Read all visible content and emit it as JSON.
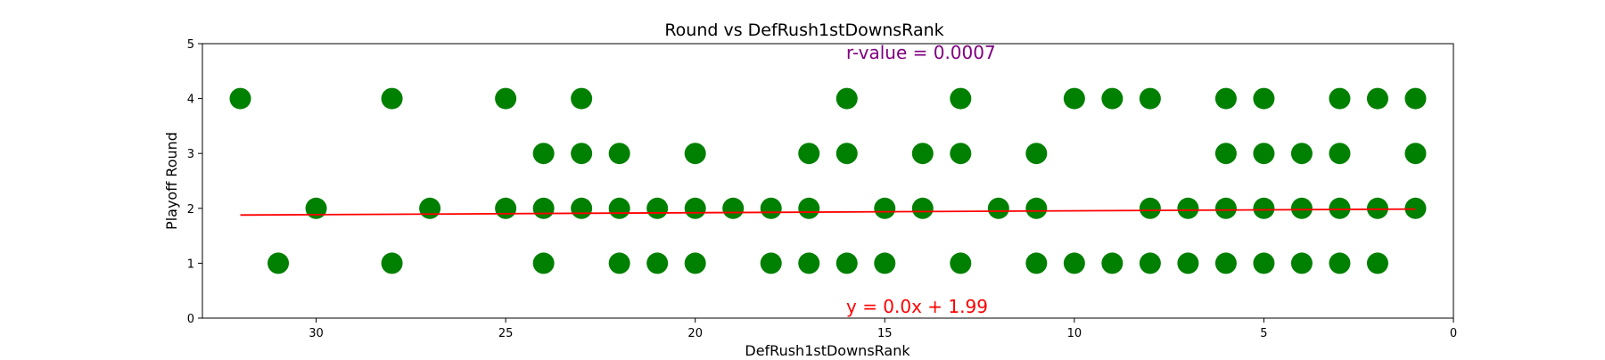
{
  "chart_data": {
    "type": "scatter",
    "title": "Round vs DefRush1stDownsRank",
    "xlabel": "DefRush1stDownsRank",
    "ylabel": "Playoff Round",
    "xlim": [
      33,
      0
    ],
    "ylim": [
      0,
      5
    ],
    "x_inverted": true,
    "xticks": [
      30,
      25,
      20,
      15,
      10,
      5,
      0
    ],
    "yticks": [
      0,
      1,
      2,
      3,
      4,
      5
    ],
    "grid": false,
    "points": [
      [
        32,
        4
      ],
      [
        31,
        1
      ],
      [
        30,
        2
      ],
      [
        28,
        4
      ],
      [
        28,
        1
      ],
      [
        27,
        2
      ],
      [
        25,
        4
      ],
      [
        25,
        2
      ],
      [
        24,
        3
      ],
      [
        24,
        2
      ],
      [
        24,
        1
      ],
      [
        23,
        4
      ],
      [
        23,
        3
      ],
      [
        23,
        2
      ],
      [
        22,
        3
      ],
      [
        22,
        2
      ],
      [
        22,
        1
      ],
      [
        21,
        2
      ],
      [
        21,
        1
      ],
      [
        20,
        3
      ],
      [
        20,
        2
      ],
      [
        20,
        1
      ],
      [
        19,
        2
      ],
      [
        18,
        2
      ],
      [
        18,
        1
      ],
      [
        17,
        3
      ],
      [
        17,
        2
      ],
      [
        17,
        1
      ],
      [
        16,
        4
      ],
      [
        16,
        3
      ],
      [
        16,
        1
      ],
      [
        15,
        2
      ],
      [
        15,
        1
      ],
      [
        14,
        3
      ],
      [
        14,
        2
      ],
      [
        13,
        4
      ],
      [
        13,
        3
      ],
      [
        13,
        1
      ],
      [
        12,
        2
      ],
      [
        11,
        3
      ],
      [
        11,
        2
      ],
      [
        11,
        1
      ],
      [
        10,
        4
      ],
      [
        10,
        1
      ],
      [
        9,
        4
      ],
      [
        9,
        1
      ],
      [
        8,
        4
      ],
      [
        8,
        2
      ],
      [
        8,
        1
      ],
      [
        7,
        2
      ],
      [
        7,
        1
      ],
      [
        6,
        4
      ],
      [
        6,
        3
      ],
      [
        6,
        2
      ],
      [
        6,
        1
      ],
      [
        5,
        4
      ],
      [
        5,
        3
      ],
      [
        5,
        2
      ],
      [
        5,
        1
      ],
      [
        4,
        3
      ],
      [
        4,
        2
      ],
      [
        4,
        1
      ],
      [
        3,
        4
      ],
      [
        3,
        3
      ],
      [
        3,
        2
      ],
      [
        3,
        1
      ],
      [
        2,
        4
      ],
      [
        2,
        2
      ],
      [
        2,
        1
      ],
      [
        1,
        4
      ],
      [
        1,
        3
      ],
      [
        1,
        2
      ]
    ],
    "regression": {
      "slope": -0.0035,
      "intercept": 1.99,
      "x_range": [
        32,
        1
      ]
    },
    "annotations": {
      "r_value": "r-value = 0.0007",
      "equation": "y = 0.0x + 1.99"
    },
    "colors": {
      "points": "#008000",
      "regression_line": "#ff0000",
      "r_value_text": "#800080",
      "equation_text": "#ff0000"
    }
  }
}
